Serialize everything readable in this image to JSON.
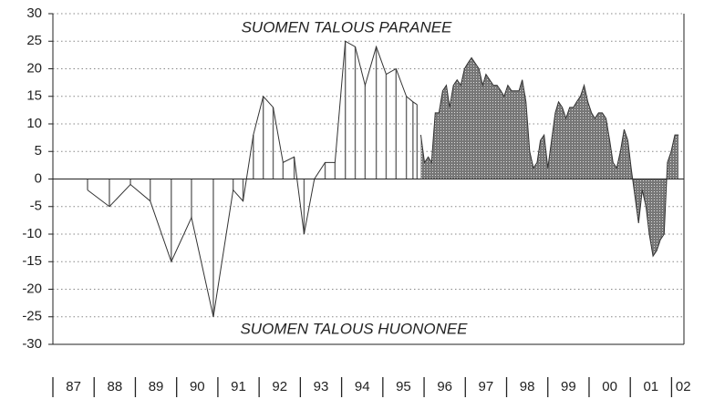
{
  "chart_data": {
    "type": "area",
    "annotations": [
      "SUOMEN TALOUS PARANEE",
      "SUOMEN TALOUS HUONONEE"
    ],
    "year_labels": [
      "87",
      "88",
      "89",
      "90",
      "91",
      "92",
      "93",
      "94",
      "95",
      "96",
      "97",
      "98",
      "99",
      "00",
      "01",
      "02"
    ],
    "xlim": [
      1987,
      2002.3
    ],
    "ylim": [
      -30,
      30
    ],
    "yticks": [
      -30,
      -25,
      -20,
      -15,
      -10,
      -5,
      0,
      5,
      10,
      15,
      20,
      25,
      30
    ],
    "grid": true,
    "color": "#555555",
    "series": [
      {
        "style": "stems",
        "x": [
          1987.84,
          1988.37,
          1988.88,
          1989.36,
          1989.87,
          1990.36,
          1990.89,
          1991.37,
          1991.61,
          1991.86,
          1992.1,
          1992.34,
          1992.58,
          1992.85,
          1993.09,
          1993.34,
          1993.6,
          1993.84,
          1994.09,
          1994.33,
          1994.57,
          1994.84,
          1995.08,
          1995.32,
          1995.57,
          1995.73,
          1995.83
        ],
        "values": [
          -2,
          -5,
          -1,
          -4,
          -15,
          -7,
          -25,
          -2,
          -4,
          8,
          15,
          13,
          3,
          4,
          -10,
          0,
          3,
          3,
          25,
          24,
          17,
          24,
          19,
          20,
          15,
          14,
          13.5
        ]
      },
      {
        "style": "area",
        "x": [
          1995.92,
          1996.01,
          1996.1,
          1996.18,
          1996.27,
          1996.36,
          1996.45,
          1996.54,
          1996.62,
          1996.71,
          1996.8,
          1996.89,
          1996.98,
          1997.06,
          1997.15,
          1997.24,
          1997.33,
          1997.42,
          1997.5,
          1997.59,
          1997.68,
          1997.77,
          1997.86,
          1997.94,
          1998.03,
          1998.12,
          1998.21,
          1998.3,
          1998.38,
          1998.47,
          1998.56,
          1998.65,
          1998.74,
          1998.82,
          1998.91,
          1999.0,
          1999.09,
          1999.18,
          1999.26,
          1999.35,
          1999.44,
          1999.53,
          1999.62,
          1999.7,
          1999.79,
          1999.88,
          1999.97,
          2000.06,
          2000.14,
          2000.23,
          2000.32,
          2000.41,
          2000.5,
          2000.58,
          2000.67,
          2000.76,
          2000.85,
          2000.94,
          2001.02,
          2001.11,
          2001.2,
          2001.29,
          2001.38,
          2001.46,
          2001.55,
          2001.64,
          2001.73,
          2001.82,
          2001.9,
          2001.99,
          2002.08,
          2002.17
        ],
        "values": [
          8,
          3,
          4,
          3,
          12,
          12,
          16,
          17,
          13,
          17,
          18,
          17,
          20,
          21,
          22,
          21,
          20,
          17,
          19,
          18,
          17,
          17,
          16,
          15,
          17,
          16,
          16,
          16,
          18,
          14,
          5,
          2,
          3,
          7,
          8,
          2,
          7,
          12,
          14,
          13,
          11,
          13,
          13,
          14,
          15,
          17,
          14,
          12,
          11,
          12,
          12,
          11,
          7,
          3,
          2,
          5,
          9,
          7,
          2,
          -3,
          -8,
          -2,
          -5,
          -10,
          -14,
          -13,
          -11,
          -10,
          3,
          5,
          8,
          8
        ]
      }
    ]
  }
}
